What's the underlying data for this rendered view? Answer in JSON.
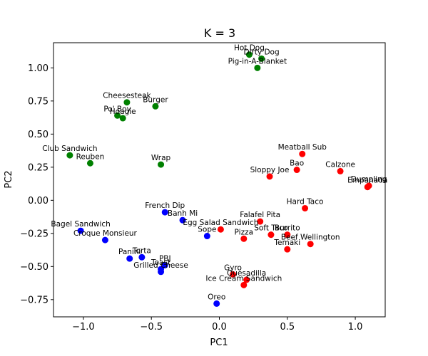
{
  "chart_data": {
    "type": "scatter",
    "title": "K = 3",
    "xlabel": "PC1",
    "ylabel": "PC2",
    "xlim": [
      -1.22,
      1.22
    ],
    "ylim": [
      -0.88,
      1.19
    ],
    "xticks": [
      -1.0,
      -0.5,
      0.0,
      0.5,
      1.0
    ],
    "xtick_labels": [
      "−1.0",
      "−0.5",
      "0.0",
      "0.5",
      "1.0"
    ],
    "yticks": [
      -0.75,
      -0.5,
      -0.25,
      0.0,
      0.25,
      0.5,
      0.75,
      1.0
    ],
    "ytick_labels": [
      "−0.75",
      "−0.50",
      "−0.25",
      "0.00",
      "0.25",
      "0.50",
      "0.75",
      "1.00"
    ],
    "grid": false,
    "series": [
      {
        "color": "#008000",
        "points": [
          {
            "label": "Hot Dog",
            "x": 0.22,
            "y": 1.1
          },
          {
            "label": "Dirty Dog",
            "x": 0.31,
            "y": 1.07
          },
          {
            "label": "Pig-in-A-Blanket",
            "x": 0.28,
            "y": 1.0
          },
          {
            "label": "Cheesesteak",
            "x": -0.68,
            "y": 0.74
          },
          {
            "label": "Burger",
            "x": -0.47,
            "y": 0.71
          },
          {
            "label": "Po' Boy",
            "x": -0.75,
            "y": 0.64
          },
          {
            "label": "Hoagie",
            "x": -0.71,
            "y": 0.62
          },
          {
            "label": "Club Sandwich",
            "x": -1.1,
            "y": 0.34
          },
          {
            "label": "Reuben",
            "x": -0.95,
            "y": 0.28
          },
          {
            "label": "Wrap",
            "x": -0.43,
            "y": 0.27
          }
        ]
      },
      {
        "color": "#ff0000",
        "points": [
          {
            "label": "Meatball Sub",
            "x": 0.61,
            "y": 0.35
          },
          {
            "label": "Calzone",
            "x": 0.89,
            "y": 0.22
          },
          {
            "label": "Bao",
            "x": 0.57,
            "y": 0.23
          },
          {
            "label": "Sloppy Joe",
            "x": 0.37,
            "y": 0.18
          },
          {
            "label": "Dumpling",
            "x": 1.1,
            "y": 0.11
          },
          {
            "label": "Empanada",
            "x": 1.09,
            "y": 0.1
          },
          {
            "label": "Hard Taco",
            "x": 0.63,
            "y": -0.06
          },
          {
            "label": "Falafel Pita",
            "x": 0.3,
            "y": -0.16
          },
          {
            "label": "Soft Taco",
            "x": 0.38,
            "y": -0.26
          },
          {
            "label": "Burrito",
            "x": 0.5,
            "y": -0.26
          },
          {
            "label": "Egg Salad Sandwich",
            "x": 0.01,
            "y": -0.22
          },
          {
            "label": "Pizza",
            "x": 0.18,
            "y": -0.29
          },
          {
            "label": "Beef Wellington",
            "x": 0.67,
            "y": -0.33
          },
          {
            "label": "Temaki",
            "x": 0.5,
            "y": -0.37
          },
          {
            "label": "Gyro",
            "x": 0.1,
            "y": -0.56
          },
          {
            "label": "Quesadilla",
            "x": 0.2,
            "y": -0.6
          },
          {
            "label": "Ice Cream Sandwich",
            "x": 0.18,
            "y": -0.64
          }
        ]
      },
      {
        "color": "#0000ff",
        "points": [
          {
            "label": "French Dip",
            "x": -0.4,
            "y": -0.09
          },
          {
            "label": "Banh Mi",
            "x": -0.27,
            "y": -0.15
          },
          {
            "label": "Sope",
            "x": -0.09,
            "y": -0.27
          },
          {
            "label": "Bagel Sandwich",
            "x": -1.02,
            "y": -0.23
          },
          {
            "label": "Croque Monsieur",
            "x": -0.84,
            "y": -0.3
          },
          {
            "label": "Torta",
            "x": -0.57,
            "y": -0.43
          },
          {
            "label": "Panini",
            "x": -0.66,
            "y": -0.44
          },
          {
            "label": "PBJ",
            "x": -0.4,
            "y": -0.49
          },
          {
            "label": "Toast",
            "x": -0.43,
            "y": -0.52
          },
          {
            "label": "Grilled Cheese",
            "x": -0.43,
            "y": -0.54
          },
          {
            "label": "Oreo",
            "x": -0.02,
            "y": -0.78
          }
        ]
      }
    ]
  }
}
